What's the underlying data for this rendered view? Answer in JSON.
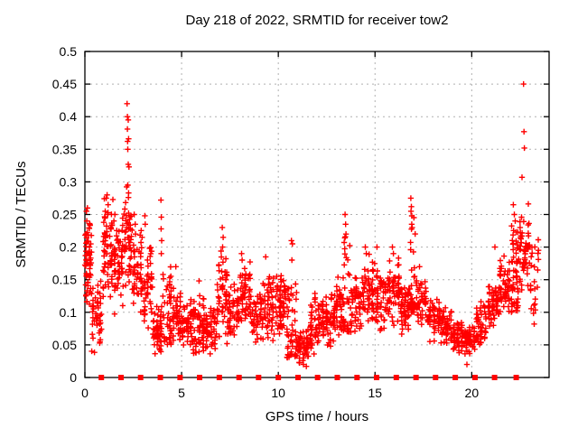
{
  "chart_data": {
    "type": "scatter",
    "title": "Day 218 of 2022, SRMTID for receiver tow2",
    "xlabel": "GPS time / hours",
    "ylabel": "SRMTID / TECUs",
    "xlim": [
      0,
      24
    ],
    "ylim": [
      0,
      0.5
    ],
    "xtick_values": [
      0,
      5,
      10,
      15,
      20
    ],
    "xtick_labels": [
      "0",
      "5",
      "10",
      "15",
      "20"
    ],
    "ytick_values": [
      0,
      0.05,
      0.1,
      0.15,
      0.2,
      0.25,
      0.3,
      0.35,
      0.4,
      0.45,
      0.5
    ],
    "ytick_labels": [
      "0",
      "0.05",
      "0.1",
      "0.15",
      "0.2",
      "0.25",
      "0.3",
      "0.35",
      "0.4",
      "0.45",
      "0.5"
    ],
    "grid": true,
    "legend": "none",
    "colors": {
      "marker": "#ff0000",
      "grid": "#b0b0b0",
      "border": "#000000",
      "background": "#ffffff"
    },
    "series": [
      {
        "name": "srmtid",
        "marker": "plus",
        "outlier_points": [
          [
            0.05,
            0.22
          ],
          [
            0.08,
            0.255
          ],
          [
            0.13,
            0.26
          ],
          [
            0.1,
            0.24
          ],
          [
            1.05,
            0.255
          ],
          [
            1.1,
            0.275
          ],
          [
            1.15,
            0.28
          ],
          [
            1.2,
            0.265
          ],
          [
            1.18,
            0.25
          ],
          [
            1.5,
            0.24
          ],
          [
            1.55,
            0.25
          ],
          [
            2.18,
            0.42
          ],
          [
            2.2,
            0.4
          ],
          [
            2.24,
            0.395
          ],
          [
            2.2,
            0.381
          ],
          [
            2.26,
            0.366
          ],
          [
            2.21,
            0.362
          ],
          [
            2.22,
            0.35
          ],
          [
            2.24,
            0.327
          ],
          [
            2.28,
            0.323
          ],
          [
            2.22,
            0.295
          ],
          [
            2.25,
            0.276
          ],
          [
            2.26,
            0.252
          ],
          [
            2.32,
            0.246
          ],
          [
            2.55,
            0.25
          ],
          [
            2.6,
            0.235
          ],
          [
            2.62,
            0.22
          ],
          [
            3.1,
            0.248
          ],
          [
            3.12,
            0.235
          ],
          [
            3.93,
            0.272
          ],
          [
            3.95,
            0.246
          ],
          [
            3.94,
            0.228
          ],
          [
            3.97,
            0.21
          ],
          [
            3.95,
            0.19
          ],
          [
            4.7,
            0.17
          ],
          [
            5.9,
            0.148
          ],
          [
            7.1,
            0.23
          ],
          [
            7.15,
            0.215
          ],
          [
            7.12,
            0.2
          ],
          [
            8.1,
            0.19
          ],
          [
            8.13,
            0.18
          ],
          [
            9.35,
            0.185
          ],
          [
            10.68,
            0.21
          ],
          [
            10.73,
            0.205
          ],
          [
            10.7,
            0.18
          ],
          [
            11.3,
            0.02
          ],
          [
            11.45,
            0.017
          ],
          [
            13.45,
            0.25
          ],
          [
            13.48,
            0.235
          ],
          [
            13.5,
            0.22
          ],
          [
            14.5,
            0.2
          ],
          [
            14.55,
            0.19
          ],
          [
            15.1,
            0.2
          ],
          [
            15.9,
            0.2
          ],
          [
            15.95,
            0.19
          ],
          [
            16.85,
            0.275
          ],
          [
            16.88,
            0.262
          ],
          [
            16.86,
            0.255
          ],
          [
            16.9,
            0.235
          ],
          [
            16.92,
            0.23
          ],
          [
            17.3,
            0.17
          ],
          [
            19.75,
            0.02
          ],
          [
            21.2,
            0.2
          ],
          [
            22.15,
            0.265
          ],
          [
            22.2,
            0.25
          ],
          [
            22.25,
            0.24
          ],
          [
            22.6,
            0.307
          ],
          [
            22.68,
            0.45
          ],
          [
            22.7,
            0.377
          ],
          [
            22.72,
            0.352
          ]
        ],
        "clusters": [
          [
            0.0,
            0.35,
            60,
            0.1,
            0.26,
            "b"
          ],
          [
            0.35,
            0.9,
            45,
            0.03,
            0.16,
            "b"
          ],
          [
            0.9,
            1.45,
            60,
            0.11,
            0.28,
            "b"
          ],
          [
            1.45,
            2.0,
            55,
            0.09,
            0.25,
            "b"
          ],
          [
            2.0,
            2.45,
            45,
            0.12,
            0.3,
            "b"
          ],
          [
            2.45,
            3.0,
            50,
            0.09,
            0.23,
            "b"
          ],
          [
            3.0,
            3.5,
            45,
            0.06,
            0.21,
            "b"
          ],
          [
            3.5,
            4.0,
            50,
            0.03,
            0.12,
            "b"
          ],
          [
            4.0,
            4.5,
            45,
            0.05,
            0.17,
            "l"
          ],
          [
            4.5,
            5.0,
            45,
            0.04,
            0.15,
            "b"
          ],
          [
            5.0,
            5.6,
            50,
            0.04,
            0.13,
            "b"
          ],
          [
            5.6,
            6.2,
            55,
            0.03,
            0.14,
            "b"
          ],
          [
            6.2,
            6.8,
            50,
            0.03,
            0.12,
            "b"
          ],
          [
            6.8,
            7.4,
            55,
            0.05,
            0.2,
            "b"
          ],
          [
            7.4,
            8.0,
            50,
            0.06,
            0.15,
            "b"
          ],
          [
            8.0,
            8.6,
            55,
            0.07,
            0.18,
            "b"
          ],
          [
            8.6,
            9.2,
            45,
            0.05,
            0.14,
            "b"
          ],
          [
            9.2,
            9.8,
            50,
            0.05,
            0.16,
            "b"
          ],
          [
            9.8,
            10.4,
            55,
            0.06,
            0.17,
            "b"
          ],
          [
            10.4,
            11.0,
            50,
            0.03,
            0.15,
            "l"
          ],
          [
            11.0,
            11.6,
            55,
            0.015,
            0.08,
            "b"
          ],
          [
            11.6,
            12.2,
            50,
            0.03,
            0.14,
            "b"
          ],
          [
            12.2,
            12.8,
            50,
            0.04,
            0.13,
            "b"
          ],
          [
            12.8,
            13.3,
            45,
            0.05,
            0.16,
            "b"
          ],
          [
            13.3,
            13.7,
            40,
            0.07,
            0.22,
            "l"
          ],
          [
            13.7,
            14.3,
            50,
            0.06,
            0.16,
            "b"
          ],
          [
            14.3,
            15.0,
            55,
            0.08,
            0.19,
            "b"
          ],
          [
            15.0,
            15.6,
            50,
            0.06,
            0.17,
            "b"
          ],
          [
            15.6,
            16.3,
            55,
            0.07,
            0.2,
            "b"
          ],
          [
            16.3,
            16.8,
            45,
            0.06,
            0.15,
            "b"
          ],
          [
            16.8,
            17.1,
            35,
            0.1,
            0.25,
            "l"
          ],
          [
            17.1,
            17.7,
            45,
            0.07,
            0.16,
            "b"
          ],
          [
            17.7,
            18.4,
            50,
            0.05,
            0.13,
            "b"
          ],
          [
            18.4,
            19.0,
            50,
            0.04,
            0.11,
            "b"
          ],
          [
            19.0,
            19.6,
            50,
            0.03,
            0.09,
            "b"
          ],
          [
            19.6,
            20.2,
            50,
            0.035,
            0.08,
            "b"
          ],
          [
            20.2,
            20.8,
            50,
            0.04,
            0.12,
            "b"
          ],
          [
            20.8,
            21.4,
            50,
            0.07,
            0.16,
            "b"
          ],
          [
            21.4,
            22.0,
            55,
            0.09,
            0.19,
            "b"
          ],
          [
            22.0,
            22.45,
            50,
            0.1,
            0.24,
            "l"
          ],
          [
            22.45,
            23.0,
            50,
            0.13,
            0.27,
            "b"
          ],
          [
            23.0,
            23.5,
            25,
            0.07,
            0.22,
            "b"
          ]
        ],
        "seed": 20220218
      },
      {
        "name": "hour-markers",
        "marker": "filled-square",
        "y": 0,
        "x": [
          0.85,
          1.87,
          2.88,
          3.9,
          4.92,
          5.93,
          6.95,
          7.97,
          8.98,
          10.0,
          11.02,
          12.03,
          13.05,
          14.07,
          15.08,
          16.1,
          17.12,
          18.13,
          19.15,
          20.17,
          21.18,
          22.3
        ]
      }
    ]
  }
}
